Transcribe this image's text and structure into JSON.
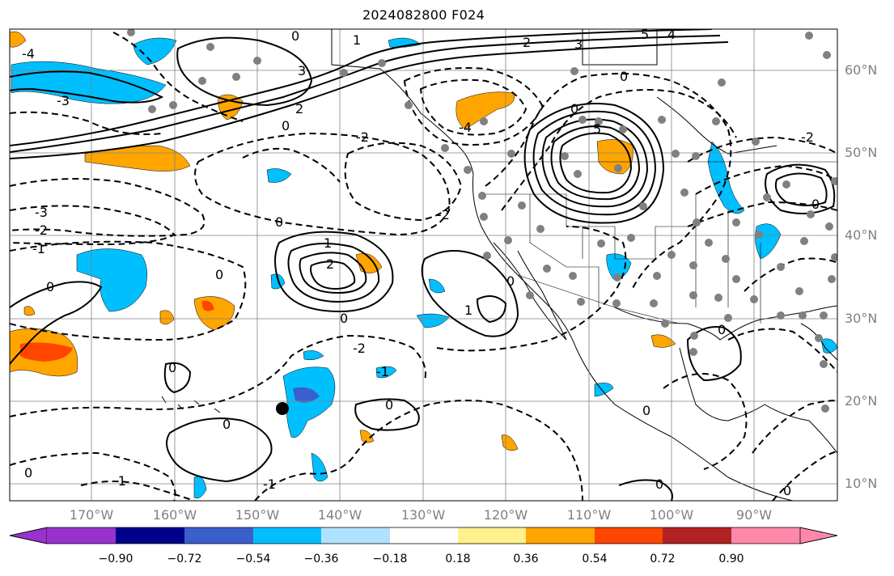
{
  "title": "2024082800 F024",
  "lat_labels": [
    "60°N",
    "50°N",
    "40°N",
    "30°N",
    "20°N",
    "10°N"
  ],
  "lon_labels": [
    "170°W",
    "160°W",
    "150°W",
    "140°W",
    "130°W",
    "120°W",
    "110°W",
    "100°W",
    "90°W"
  ],
  "contour_labels": [
    "-4",
    "-3",
    "-2",
    "-1",
    "0",
    "1",
    "2",
    "3",
    "4",
    "5"
  ],
  "colorbar": {
    "ticks": [
      "−0.90",
      "−0.72",
      "−0.54",
      "−0.36",
      "−0.18",
      "0.18",
      "0.36",
      "0.54",
      "0.72",
      "0.90"
    ],
    "colors": [
      "#9932cc",
      "#00008b",
      "#3a5fcd",
      "#00bfff",
      "#b0e2ff",
      "#ffffff",
      "#fff08c",
      "#ffa500",
      "#ff4500",
      "#b22222",
      "#ff88aa"
    ],
    "extend": "both"
  },
  "colors": {
    "contour": "#000000",
    "grid": "#808080",
    "station": "#808080",
    "coast": "#000000"
  },
  "marker": {
    "label": "",
    "color": "#000000"
  }
}
